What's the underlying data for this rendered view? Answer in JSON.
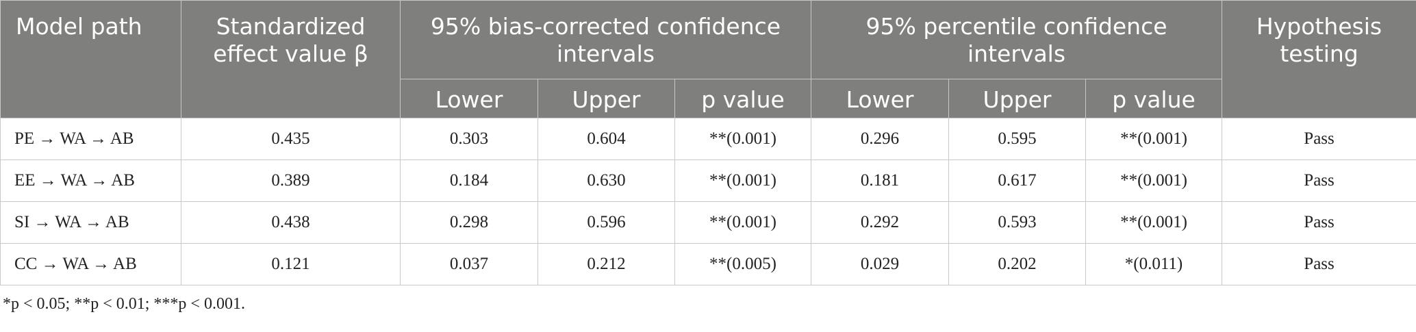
{
  "table": {
    "header": [
      [
        "Model path",
        "Standardized effect value β",
        "95% bias-corrected confidence intervals",
        "95% percentile confidence intervals",
        "Hypothesis testing"
      ],
      [
        "Lower",
        "Upper",
        "p value",
        "Lower",
        "Upper",
        "p value"
      ]
    ],
    "rows": [
      [
        "PE → WA → AB",
        "0.435",
        "0.303",
        "0.604",
        "**(0.001)",
        "0.296",
        "0.595",
        "**(0.001)",
        "Pass"
      ],
      [
        "EE → WA → AB",
        "0.389",
        "0.184",
        "0.630",
        "**(0.001)",
        "0.181",
        "0.617",
        "**(0.001)",
        "Pass"
      ],
      [
        "SI → WA → AB",
        "0.438",
        "0.298",
        "0.596",
        "**(0.001)",
        "0.292",
        "0.593",
        "**(0.001)",
        "Pass"
      ],
      [
        "CC → WA → AB",
        "0.121",
        "0.037",
        "0.212",
        "**(0.005)",
        "0.029",
        "0.202",
        "*(0.011)",
        "Pass"
      ]
    ]
  },
  "footnote": "*p < 0.05; **p < 0.01; ***p < 0.001."
}
